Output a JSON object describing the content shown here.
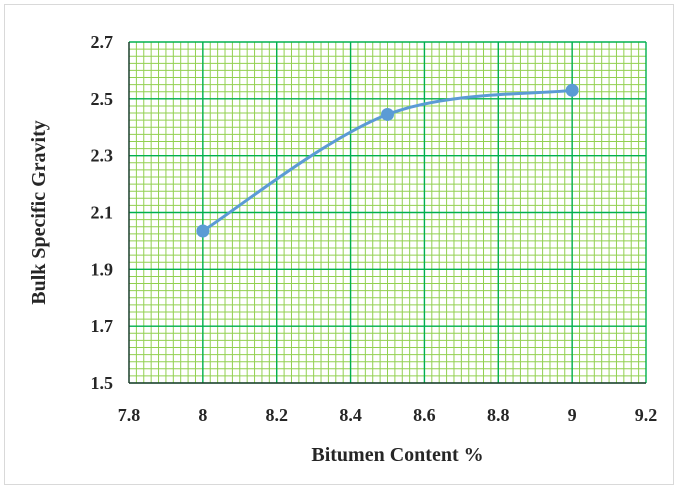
{
  "chart_data": {
    "type": "line",
    "title": "",
    "xlabel": "Bitumen Content %",
    "ylabel": "Bulk Specific Gravity",
    "xlim": [
      7.8,
      9.2
    ],
    "ylim": [
      1.5,
      2.7
    ],
    "x_ticks": [
      "7.8",
      "8",
      "8.2",
      "8.4",
      "8.6",
      "8.8",
      "9",
      "9.2"
    ],
    "y_ticks": [
      "1.5",
      "1.7",
      "1.9",
      "2.1",
      "2.3",
      "2.5",
      "2.7"
    ],
    "grid": "major and minor",
    "smooth": true,
    "series": [
      {
        "x": [
          8,
          8.5,
          9
        ],
        "values": [
          2.035,
          2.445,
          2.53
        ]
      }
    ],
    "colors": {
      "line": "#5b9bd5",
      "minor_grid": "#92d050",
      "major_grid": "#00b050",
      "axis": "#262626",
      "text": "#262626"
    }
  }
}
